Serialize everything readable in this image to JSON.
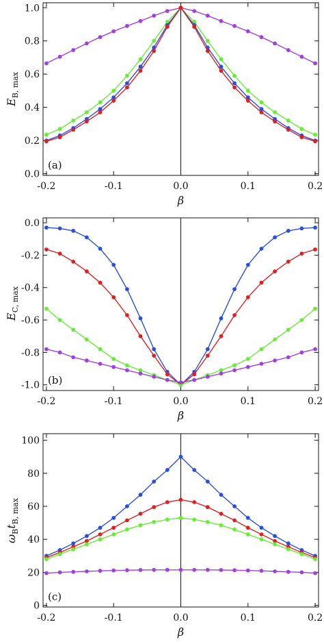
{
  "chart_data": [
    {
      "type": "line",
      "panel": "(a)",
      "xlabel": "β",
      "ylabel": "E_B,max",
      "ylabel_main": "E",
      "ylabel_sub": "B, max",
      "xlim": [
        -0.205,
        0.205
      ],
      "ylim": [
        -0.01,
        1.03
      ],
      "xticks": [
        -0.2,
        -0.1,
        0.0,
        0.1,
        0.2
      ],
      "yticks": [
        0.0,
        0.2,
        0.4,
        0.6,
        0.8,
        1.0
      ],
      "xtick_labels": [
        "-0.2",
        "-0.1",
        "0.0",
        "0.1",
        "0.2"
      ],
      "ytick_labels": [
        "0.0",
        "0.2",
        "0.4",
        "0.6",
        "0.8",
        "1.0"
      ],
      "vline_x": 0,
      "x": [
        -0.2,
        -0.18,
        -0.16,
        -0.14,
        -0.12,
        -0.1,
        -0.08,
        -0.06,
        -0.04,
        -0.02,
        0.0,
        0.02,
        0.04,
        0.06,
        0.08,
        0.1,
        0.12,
        0.14,
        0.16,
        0.18,
        0.2
      ],
      "series": [
        {
          "color": "#a040e0",
          "values": [
            0.665,
            0.705,
            0.745,
            0.785,
            0.823,
            0.858,
            0.89,
            0.92,
            0.952,
            0.98,
            1.0,
            0.98,
            0.952,
            0.92,
            0.89,
            0.858,
            0.823,
            0.785,
            0.745,
            0.705,
            0.665
          ]
        },
        {
          "color": "#66ee33",
          "values": [
            0.235,
            0.27,
            0.32,
            0.37,
            0.43,
            0.5,
            0.59,
            0.69,
            0.8,
            0.915,
            1.0,
            0.915,
            0.8,
            0.69,
            0.59,
            0.5,
            0.43,
            0.37,
            0.32,
            0.27,
            0.235
          ]
        },
        {
          "color": "#2a4fe0",
          "values": [
            0.2,
            0.23,
            0.275,
            0.33,
            0.39,
            0.46,
            0.545,
            0.645,
            0.76,
            0.895,
            1.0,
            0.895,
            0.76,
            0.645,
            0.545,
            0.46,
            0.39,
            0.33,
            0.275,
            0.23,
            0.2
          ]
        },
        {
          "color": "#e02020",
          "values": [
            0.195,
            0.22,
            0.265,
            0.315,
            0.37,
            0.44,
            0.52,
            0.62,
            0.74,
            0.885,
            1.0,
            0.885,
            0.74,
            0.62,
            0.52,
            0.44,
            0.37,
            0.315,
            0.265,
            0.22,
            0.195
          ]
        }
      ]
    },
    {
      "type": "line",
      "panel": "(b)",
      "xlabel": "β",
      "ylabel": "E_C,max",
      "ylabel_main": "E",
      "ylabel_sub": "C, max",
      "xlim": [
        -0.205,
        0.205
      ],
      "ylim": [
        -1.035,
        0.03
      ],
      "xticks": [
        -0.2,
        -0.1,
        0.0,
        0.1,
        0.2
      ],
      "yticks": [
        -1.0,
        -0.8,
        -0.6,
        -0.4,
        -0.2,
        0.0
      ],
      "xtick_labels": [
        "-0.2",
        "-0.1",
        "0.0",
        "0.1",
        "0.2"
      ],
      "ytick_labels": [
        "-1.0",
        "-0.8",
        "-0.6",
        "-0.4",
        "-0.2",
        "0.0"
      ],
      "vline_x": 0,
      "x": [
        -0.2,
        -0.18,
        -0.16,
        -0.14,
        -0.12,
        -0.1,
        -0.08,
        -0.06,
        -0.04,
        -0.02,
        0.0,
        0.02,
        0.04,
        0.06,
        0.08,
        0.1,
        0.12,
        0.14,
        0.16,
        0.18,
        0.2
      ],
      "series": [
        {
          "color": "#2a4fe0",
          "values": [
            -0.03,
            -0.035,
            -0.05,
            -0.09,
            -0.16,
            -0.26,
            -0.41,
            -0.59,
            -0.78,
            -0.92,
            -1.0,
            -0.92,
            -0.78,
            -0.59,
            -0.41,
            -0.26,
            -0.16,
            -0.09,
            -0.05,
            -0.035,
            -0.03
          ]
        },
        {
          "color": "#e02020",
          "values": [
            -0.165,
            -0.19,
            -0.24,
            -0.3,
            -0.37,
            -0.46,
            -0.57,
            -0.7,
            -0.82,
            -0.935,
            -1.0,
            -0.935,
            -0.82,
            -0.7,
            -0.57,
            -0.46,
            -0.37,
            -0.3,
            -0.24,
            -0.19,
            -0.165
          ]
        },
        {
          "color": "#66ee33",
          "values": [
            -0.53,
            -0.6,
            -0.66,
            -0.72,
            -0.78,
            -0.84,
            -0.88,
            -0.91,
            -0.94,
            -0.97,
            -1.0,
            -0.97,
            -0.94,
            -0.91,
            -0.88,
            -0.84,
            -0.78,
            -0.72,
            -0.66,
            -0.6,
            -0.53
          ]
        },
        {
          "color": "#a040e0",
          "values": [
            -0.78,
            -0.8,
            -0.83,
            -0.85,
            -0.87,
            -0.89,
            -0.91,
            -0.93,
            -0.95,
            -0.97,
            -0.985,
            -0.97,
            -0.95,
            -0.93,
            -0.91,
            -0.89,
            -0.87,
            -0.85,
            -0.83,
            -0.8,
            -0.78
          ]
        }
      ]
    },
    {
      "type": "line",
      "panel": "(c)",
      "xlabel": "β",
      "ylabel": "ω_B t_B,max",
      "ylabel_main": "ω",
      "ylabel_sub": "B",
      "ylabel_main2": "t",
      "ylabel_sub2": "B, max",
      "xlim": [
        -0.205,
        0.205
      ],
      "ylim": [
        -1,
        104
      ],
      "xticks": [
        -0.2,
        -0.1,
        0.0,
        0.1,
        0.2
      ],
      "yticks": [
        0,
        20,
        40,
        60,
        80,
        100
      ],
      "xtick_labels": [
        "-0.2",
        "-0.1",
        "0.0",
        "0.1",
        "0.2"
      ],
      "ytick_labels": [
        "0",
        "20",
        "40",
        "60",
        "80",
        "100"
      ],
      "vline_x": 0,
      "x": [
        -0.2,
        -0.18,
        -0.16,
        -0.14,
        -0.12,
        -0.1,
        -0.08,
        -0.06,
        -0.04,
        -0.02,
        0.0,
        0.02,
        0.04,
        0.06,
        0.08,
        0.1,
        0.12,
        0.14,
        0.16,
        0.18,
        0.2
      ],
      "series": [
        {
          "color": "#2a4fe0",
          "values": [
            30,
            33.5,
            37.5,
            42,
            47,
            53,
            60,
            67,
            75,
            82,
            90,
            82,
            75,
            67,
            60,
            53,
            47,
            42,
            37.5,
            33.5,
            30
          ]
        },
        {
          "color": "#e02020",
          "values": [
            29,
            32,
            35.5,
            39,
            43,
            47,
            51.5,
            55.5,
            59.5,
            62.5,
            64,
            62.5,
            59.5,
            55.5,
            51.5,
            47,
            43,
            39,
            35.5,
            32,
            29
          ]
        },
        {
          "color": "#66ee33",
          "values": [
            28,
            31,
            34,
            37,
            40,
            43,
            46,
            48.5,
            50.5,
            52,
            53,
            52,
            50.5,
            48.5,
            46,
            43,
            40,
            37,
            34,
            31,
            28
          ]
        },
        {
          "color": "#a040e0",
          "values": [
            19.5,
            20,
            20.3,
            20.6,
            20.9,
            21.1,
            21.3,
            21.4,
            21.5,
            21.5,
            21.5,
            21.5,
            21.5,
            21.4,
            21.3,
            21.1,
            20.9,
            20.6,
            20.3,
            20,
            19.5
          ]
        }
      ]
    }
  ]
}
